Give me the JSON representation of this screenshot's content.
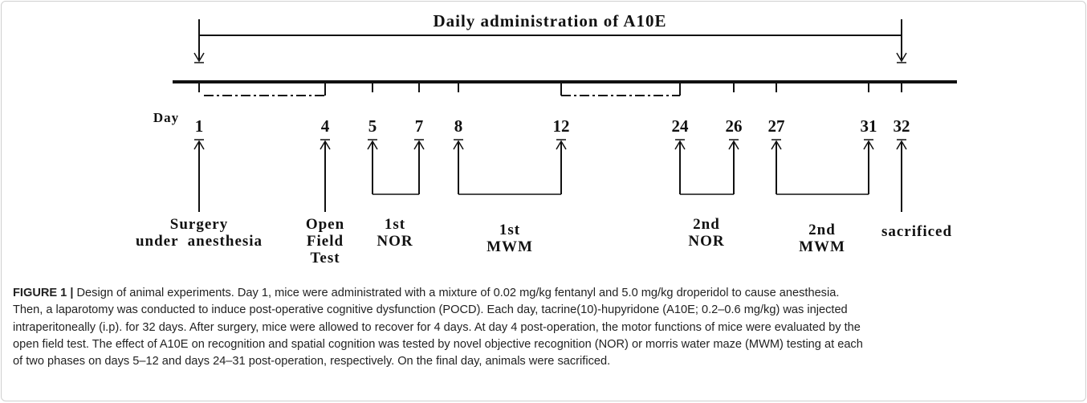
{
  "diagram": {
    "header": "Daily administration of A10E",
    "day_label": "Day",
    "days": [
      "1",
      "4",
      "5",
      "7",
      "8",
      "12",
      "24",
      "26",
      "27",
      "31",
      "32"
    ],
    "events": [
      {
        "lines": [
          "Surgery",
          "under  anesthesia"
        ]
      },
      {
        "lines": [
          "Open",
          "Field",
          "Test"
        ]
      },
      {
        "lines": [
          "1st",
          "NOR"
        ]
      },
      {
        "lines": [
          "1st",
          "MWM"
        ]
      },
      {
        "lines": [
          "2nd",
          "NOR"
        ]
      },
      {
        "lines": [
          "2nd",
          "MWM"
        ]
      },
      {
        "lines": [
          "sacrificed"
        ]
      }
    ]
  },
  "caption": {
    "label": "FIGURE 1 |",
    "lines": [
      " Design of animal experiments. Day 1, mice were administrated with a mixture of 0.02 mg/kg fentanyl and 5.0 mg/kg droperidol to cause anesthesia.",
      "Then, a laparotomy was conducted to induce post-operative cognitive dysfunction (POCD). Each day, tacrine(10)-hupyridone (A10E; 0.2–0.6 mg/kg) was injected",
      "intraperitoneally (i.p). for 32 days. After surgery, mice were allowed to recover for 4 days. At day 4 post-operation, the motor functions of mice were evaluated by the",
      "open field test. The effect of A10E on recognition and spatial cognition was tested by novel objective recognition (NOR) or morris water maze (MWM) testing at each",
      "of two phases on days 5–12 and days 24–31 post-operation, respectively. On the final day, animals were sacrificed."
    ]
  }
}
